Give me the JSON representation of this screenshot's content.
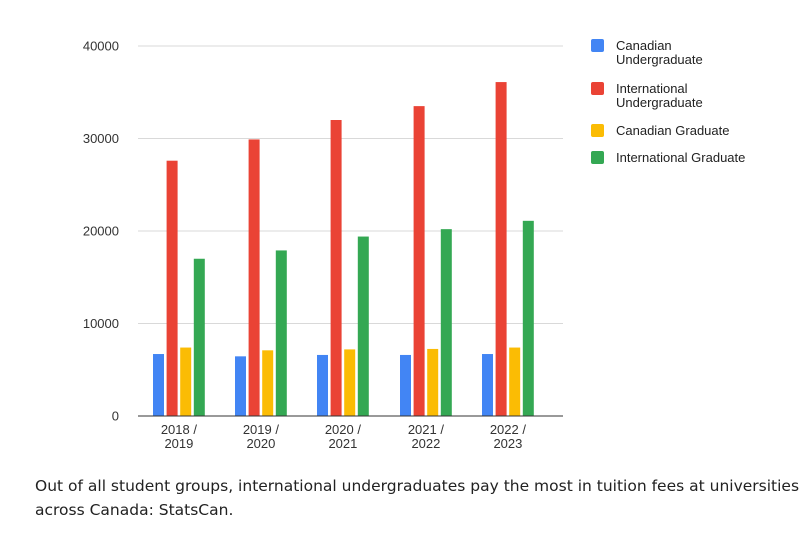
{
  "chart_data": {
    "type": "bar",
    "categories": [
      [
        "2018 /",
        "2019"
      ],
      [
        "2019 /",
        "2020"
      ],
      [
        "2020 /",
        "2021"
      ],
      [
        "2021 /",
        "2022"
      ],
      [
        "2022 /",
        "2023"
      ]
    ],
    "series": [
      {
        "name": [
          "Canadian",
          "Undergraduate"
        ],
        "color": "#4285f4",
        "values": [
          6700,
          6450,
          6600,
          6600,
          6700
        ]
      },
      {
        "name": [
          "International",
          "Undergraduate"
        ],
        "color": "#ea4335",
        "values": [
          27600,
          29900,
          32000,
          33500,
          36100
        ]
      },
      {
        "name": [
          "Canadian Graduate"
        ],
        "color": "#fbbc04",
        "values": [
          7400,
          7100,
          7200,
          7250,
          7400
        ]
      },
      {
        "name": [
          "International Graduate"
        ],
        "color": "#34a853",
        "values": [
          17000,
          17900,
          19400,
          20200,
          21100
        ]
      }
    ],
    "yticks": [
      "0",
      "10000",
      "20000",
      "30000",
      "40000"
    ],
    "ylim": [
      0,
      40000
    ],
    "grid": true,
    "legend_position": "right"
  },
  "caption": "Out of all student groups, international undergraduates pay the most in tuition fees at universities across Canada: StatsCan."
}
